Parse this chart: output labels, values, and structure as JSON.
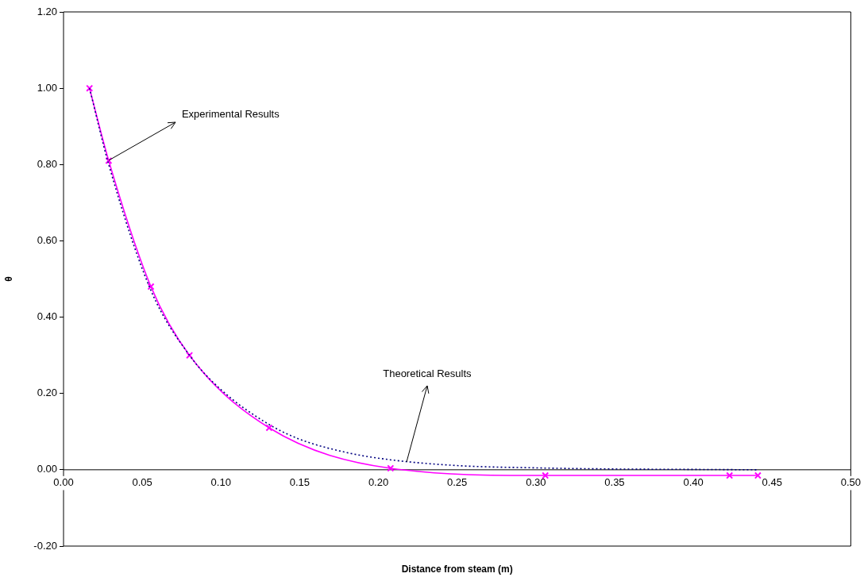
{
  "chart_data": {
    "type": "line",
    "xlabel": "Distance from steam (m)",
    "ylabel": "θ",
    "xlim": [
      0,
      0.5
    ],
    "xticks": [
      {
        "value": 0,
        "label": "0.00"
      },
      {
        "value": 0.05,
        "label": "0.05"
      },
      {
        "value": 0.1,
        "label": "0.10"
      },
      {
        "value": 0.15,
        "label": "0.15"
      },
      {
        "value": 0.2,
        "label": "0.20"
      },
      {
        "value": 0.25,
        "label": "0.25"
      },
      {
        "value": 0.3,
        "label": "0.30"
      },
      {
        "value": 0.35,
        "label": "0.35"
      },
      {
        "value": 0.4,
        "label": "0.40"
      },
      {
        "value": 0.45,
        "label": "0.45"
      },
      {
        "value": 0.5,
        "label": "0.50"
      }
    ],
    "ylim": [
      -0.2,
      1.2
    ],
    "yticks": [
      {
        "value": -0.2,
        "label": "-0.20"
      },
      {
        "value": 0,
        "label": "0.00"
      },
      {
        "value": 0.2,
        "label": "0.20"
      },
      {
        "value": 0.4,
        "label": "0.40"
      },
      {
        "value": 0.6,
        "label": "0.60"
      },
      {
        "value": 0.8,
        "label": "0.80"
      },
      {
        "value": 1,
        "label": "1.00"
      },
      {
        "value": 1.2,
        "label": "1.20"
      }
    ],
    "grid": false,
    "legend": false,
    "series": [
      {
        "color": "#000080",
        "line_style": "dotted",
        "marker": "none",
        "x": [
          0.0165,
          0.0287,
          0.0555,
          0.08,
          0.1,
          0.13,
          0.15,
          0.18,
          0.206,
          0.25,
          0.3,
          0.35,
          0.4,
          0.441
        ],
        "values": [
          1.0,
          0.8,
          0.47,
          0.3,
          0.21,
          0.12,
          0.08,
          0.045,
          0.027,
          0.011,
          0.005,
          0.002,
          0.001,
          0.0
        ]
      },
      {
        "color": "#ff00ff",
        "line_style": "solid",
        "marker": "cross",
        "x": [
          0.0165,
          0.0287,
          0.0555,
          0.08,
          0.1306,
          0.2077,
          0.306,
          0.423,
          0.441
        ],
        "values": [
          1.0,
          0.81,
          0.48,
          0.3,
          0.11,
          0.004,
          -0.015,
          -0.015,
          -0.015
        ]
      }
    ],
    "annotations": [
      {
        "text": "Experimental Results",
        "x": 0.0287,
        "y": 0.81
      },
      {
        "text": "Theoretical Results",
        "x": 0.218,
        "y": 0.021
      }
    ]
  }
}
